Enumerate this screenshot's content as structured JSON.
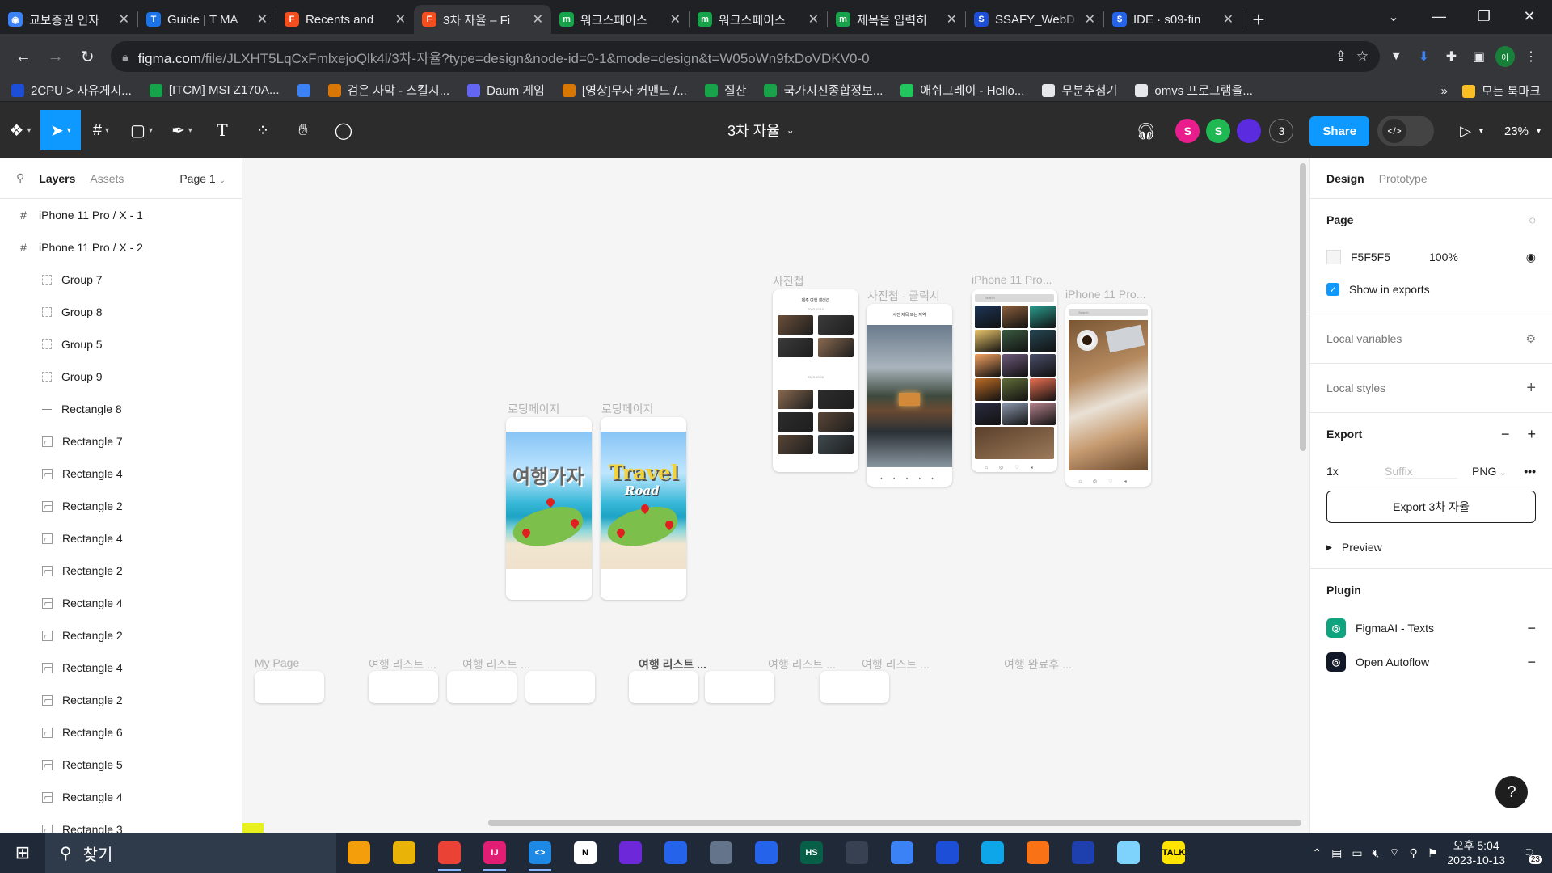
{
  "browser": {
    "tabs": [
      {
        "title": "교보증권 인자",
        "favicon_color": "#3b82f6",
        "glyph": "◉"
      },
      {
        "title": "Guide | T MA",
        "favicon_color": "#1a73e8",
        "glyph": "T"
      },
      {
        "title": "Recents and",
        "favicon_color": "#f24e1e",
        "glyph": "F"
      },
      {
        "title": "3차 자율 – Fi",
        "favicon_color": "#f24e1e",
        "glyph": "F"
      },
      {
        "title": "워크스페이스",
        "favicon_color": "#16a34a",
        "glyph": "m"
      },
      {
        "title": "워크스페이스",
        "favicon_color": "#16a34a",
        "glyph": "m"
      },
      {
        "title": "제목을 입력히",
        "favicon_color": "#16a34a",
        "glyph": "m"
      },
      {
        "title": "SSAFY_WebD",
        "favicon_color": "#1d4ed8",
        "glyph": "S"
      },
      {
        "title": "IDE · s09-fin",
        "favicon_color": "#2563eb",
        "glyph": "$"
      }
    ],
    "url_host": "figma.com",
    "url_path": "/file/JLXHT5LqCxFmlxejoQlk4l/3차-자율?type=design&node-id=0-1&mode=design&t=W05oWn9fxDoVDKV0-0",
    "profile_initials": "이",
    "bookmarks": [
      {
        "label": "2CPU > 자유게시...",
        "color": "#1d4ed8"
      },
      {
        "label": "[ITCM] MSI Z170A...",
        "color": "#16a34a"
      },
      {
        "label": "",
        "color": "#3b82f6"
      },
      {
        "label": "검은 사막 - 스킬시...",
        "color": "#d97706"
      },
      {
        "label": "Daum 게임",
        "color": "#6366f1"
      },
      {
        "label": "[영상]무사 커맨드 /...",
        "color": "#d97706"
      },
      {
        "label": "질산",
        "color": "#16a34a"
      },
      {
        "label": "국가지진종합정보...",
        "color": "#16a34a"
      },
      {
        "label": "애쉬그레이 - Hello...",
        "color": "#22c55e"
      },
      {
        "label": "무분추첨기",
        "color": "#e5e7eb"
      },
      {
        "label": "omvs 프로그램을...",
        "color": "#e5e7eb"
      }
    ],
    "bookmarks_more": "»",
    "all_bookmarks": "모든 북마크"
  },
  "figma": {
    "file_title": "3차 자율",
    "collaborators": [
      {
        "initial": "S",
        "color": "#e91e8c"
      },
      {
        "initial": "S",
        "color": "#1fb954"
      },
      {
        "initial": "",
        "color": "#5b2be0"
      }
    ],
    "collaborator_count": "3",
    "share_label": "Share",
    "zoom": "23%",
    "left_panel": {
      "tab_layers": "Layers",
      "tab_assets": "Assets",
      "page_selector": "Page 1",
      "layers": [
        {
          "name": "iPhone 11 Pro / X - 1",
          "type": "frame"
        },
        {
          "name": "iPhone 11 Pro / X - 2",
          "type": "frame"
        },
        {
          "name": "Group 7",
          "type": "group"
        },
        {
          "name": "Group 8",
          "type": "group"
        },
        {
          "name": "Group 5",
          "type": "group"
        },
        {
          "name": "Group 9",
          "type": "group"
        },
        {
          "name": "Rectangle 8",
          "type": "line"
        },
        {
          "name": "Rectangle 7",
          "type": "image"
        },
        {
          "name": "Rectangle 4",
          "type": "image"
        },
        {
          "name": "Rectangle 2",
          "type": "image"
        },
        {
          "name": "Rectangle 4",
          "type": "image"
        },
        {
          "name": "Rectangle 2",
          "type": "image"
        },
        {
          "name": "Rectangle 4",
          "type": "image"
        },
        {
          "name": "Rectangle 2",
          "type": "image"
        },
        {
          "name": "Rectangle 4",
          "type": "image"
        },
        {
          "name": "Rectangle 2",
          "type": "image"
        },
        {
          "name": "Rectangle 6",
          "type": "image"
        },
        {
          "name": "Rectangle 5",
          "type": "image"
        },
        {
          "name": "Rectangle 4",
          "type": "image"
        },
        {
          "name": "Rectangle 3",
          "type": "image"
        }
      ]
    },
    "canvas": {
      "background": "#F5F5F5",
      "frame_labels": {
        "loading1": "로딩페이지",
        "loading2": "로딩페이지",
        "album": "사진첩",
        "album_click": "사진첩 - 클릭시",
        "iphone1": "iPhone 11 Pro...",
        "iphone2": "iPhone 11 Pro...",
        "mypage": "My Page",
        "travel1": "여행 리스트 ...",
        "travel2": "여행 리스트 ...",
        "travel3": "여행 리스트 ...",
        "travel4": "여행 리스트 ...",
        "travel5": "여행 리스트 ...",
        "travel_done": "여행 완료후 ..."
      },
      "phone_text": {
        "korean_title": "여행가자",
        "travel": "Travel",
        "road": "Road",
        "album_header": "제주 여행 갤러리",
        "album_date1": "2023.10.10",
        "album_date2": "2023.09.05",
        "photo_caption": "사진 제목 또는 지역",
        "search": "Search"
      }
    },
    "right_panel": {
      "tab_design": "Design",
      "tab_prototype": "Prototype",
      "page_heading": "Page",
      "page_color": "F5F5F5",
      "page_opacity": "100%",
      "show_in_exports": "Show in exports",
      "local_variables": "Local variables",
      "local_styles": "Local styles",
      "export_heading": "Export",
      "export_scale": "1x",
      "export_suffix_placeholder": "Suffix",
      "export_format": "PNG",
      "export_button": "Export 3차 자율",
      "preview": "Preview",
      "plugin_heading": "Plugin",
      "plugins": [
        {
          "name": "FigmaAI - Texts",
          "color": "#10a37f"
        },
        {
          "name": "Open Autoflow",
          "color": "#111827"
        }
      ],
      "help": "?"
    }
  },
  "taskbar": {
    "search_label": "찾기",
    "apps": [
      {
        "name": "food-app",
        "color": "#f59e0b",
        "glyph": ""
      },
      {
        "name": "file-explorer",
        "color": "#eab308",
        "glyph": ""
      },
      {
        "name": "chrome",
        "color": "#ea4335",
        "glyph": "",
        "running": true
      },
      {
        "name": "intellij",
        "color": "#e11d74",
        "glyph": "IJ",
        "running": true
      },
      {
        "name": "vscode",
        "color": "#1e88e5",
        "glyph": "<>",
        "running": true
      },
      {
        "name": "notion",
        "color": "#ffffff",
        "glyph": "N"
      },
      {
        "name": "app-purple",
        "color": "#6d28d9",
        "glyph": ""
      },
      {
        "name": "maps",
        "color": "#2563eb",
        "glyph": ""
      },
      {
        "name": "network",
        "color": "#64748b",
        "glyph": ""
      },
      {
        "name": "app-grid",
        "color": "#2563eb",
        "glyph": ""
      },
      {
        "name": "hs-app",
        "color": "#065f46",
        "glyph": "HS"
      },
      {
        "name": "photo-app",
        "color": "#374151",
        "glyph": ""
      },
      {
        "name": "remote",
        "color": "#3b82f6",
        "glyph": ""
      },
      {
        "name": "browser-blue",
        "color": "#1d4ed8",
        "glyph": ""
      },
      {
        "name": "cube",
        "color": "#0ea5e9",
        "glyph": ""
      },
      {
        "name": "git",
        "color": "#f97316",
        "glyph": ""
      },
      {
        "name": "clock-app",
        "color": "#1e40af",
        "glyph": ""
      },
      {
        "name": "pen-app",
        "color": "#7dd3fc",
        "glyph": ""
      },
      {
        "name": "kakaotalk",
        "color": "#fee500",
        "glyph": "TALK"
      }
    ],
    "time": "오후 5:04",
    "date": "2023-10-13",
    "notification_count": "23"
  }
}
